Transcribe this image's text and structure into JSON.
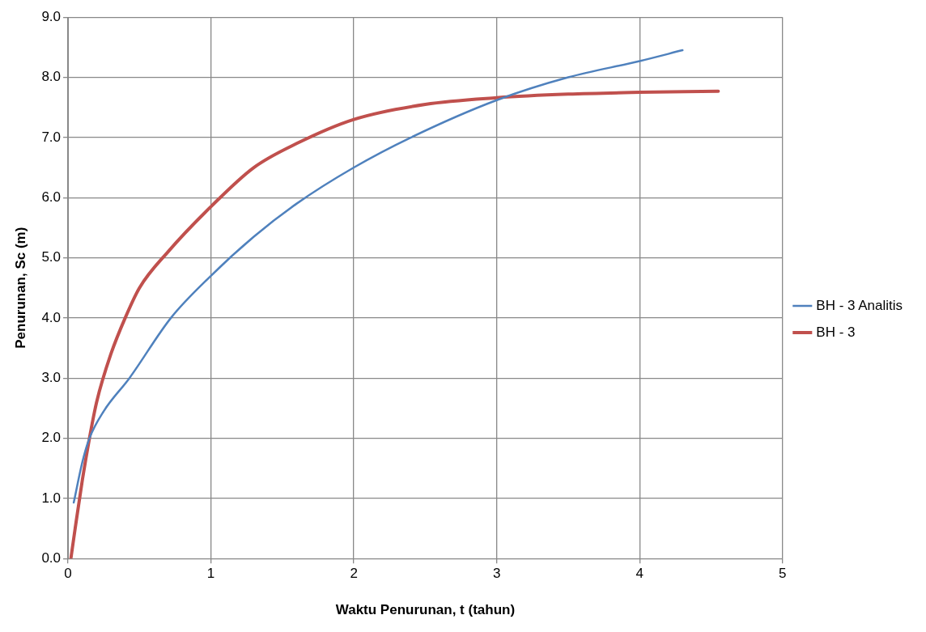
{
  "chart_data": {
    "type": "line",
    "xlabel": "Waktu Penurunan, t (tahun)",
    "ylabel": "Penurunan, Sc (m)",
    "xlim": [
      0,
      5
    ],
    "xticks": [
      0,
      1,
      2,
      3,
      4,
      5
    ],
    "ylim": [
      0,
      9
    ],
    "yticks": [
      {
        "value": 0,
        "label": "0.0"
      },
      {
        "value": 1,
        "label": "1.0"
      },
      {
        "value": 2,
        "label": "2.0"
      },
      {
        "value": 3,
        "label": "3.0"
      },
      {
        "value": 4,
        "label": "4.0"
      },
      {
        "value": 5,
        "label": "5.0"
      },
      {
        "value": 6,
        "label": "6.0"
      },
      {
        "value": 7,
        "label": "7.0"
      },
      {
        "value": 8,
        "label": "8.0"
      },
      {
        "value": 9,
        "label": "9.0"
      }
    ],
    "grid": true,
    "legend": "right",
    "marker": "none",
    "line_style": "solid",
    "series": [
      {
        "name": "BH - 3 Analitis",
        "color": "#4f81bd",
        "x": [
          0.04,
          0.1,
          0.15,
          0.25,
          0.43,
          0.72,
          1.0,
          1.3,
          1.6,
          2.0,
          2.4,
          3.0,
          3.5,
          4.0,
          4.3
        ],
        "values": [
          0.93,
          1.6,
          2.0,
          2.45,
          3.0,
          4.0,
          4.7,
          5.35,
          5.9,
          6.5,
          7.0,
          7.62,
          8.0,
          8.27,
          8.45
        ]
      },
      {
        "name": "BH - 3",
        "color": "#c0504d",
        "x": [
          0.02,
          0.05,
          0.1,
          0.15,
          0.2,
          0.3,
          0.4,
          0.5,
          0.7,
          1.0,
          1.3,
          1.6,
          2.0,
          2.5,
          3.0,
          3.5,
          4.0,
          4.55
        ],
        "values": [
          0,
          0.5,
          1.3,
          2.0,
          2.6,
          3.4,
          4.0,
          4.5,
          5.1,
          5.85,
          6.5,
          6.9,
          7.3,
          7.55,
          7.66,
          7.72,
          7.75,
          7.77
        ]
      }
    ]
  }
}
